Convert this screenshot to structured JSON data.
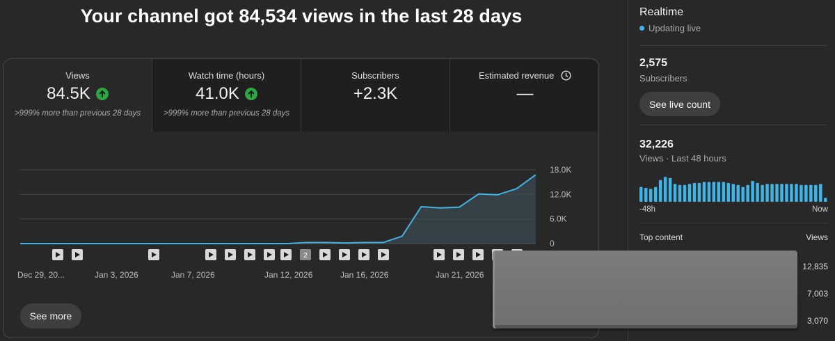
{
  "headline": "Your channel got 84,534 views in the last 28 days",
  "metrics": [
    {
      "label": "Views",
      "value": "84.5K",
      "sub": ">999% more than previous 28 days"
    },
    {
      "label": "Watch time (hours)",
      "value": "41.0K",
      "sub": ">999% more than previous 28 days"
    },
    {
      "label": "Subscribers",
      "value": "+2.3K",
      "sub": ""
    },
    {
      "label": "Estimated revenue",
      "value": "—",
      "sub": ""
    }
  ],
  "chart_data": {
    "type": "area",
    "title": "",
    "xlabel": "",
    "ylabel": "",
    "ylim": [
      0,
      18000
    ],
    "y_ticks": [
      "18.0K",
      "12.0K",
      "6.0K",
      "0"
    ],
    "x_tick_labels": [
      "Dec 29, 20...",
      "Jan 3, 2026",
      "Jan 7, 2026",
      "Jan 12, 2026",
      "Jan 16, 2026",
      "Jan 21, 2026"
    ],
    "x": [
      "Dec 29",
      "Dec 30",
      "Dec 31",
      "Jan 1",
      "Jan 2",
      "Jan 3",
      "Jan 4",
      "Jan 5",
      "Jan 6",
      "Jan 7",
      "Jan 8",
      "Jan 9",
      "Jan 10",
      "Jan 11",
      "Jan 12",
      "Jan 13",
      "Jan 14",
      "Jan 15",
      "Jan 16",
      "Jan 17",
      "Jan 18",
      "Jan 19",
      "Jan 20",
      "Jan 21",
      "Jan 22",
      "Jan 23",
      "Jan 24",
      "Jan 25"
    ],
    "series": [
      {
        "values": [
          0,
          0,
          0,
          0,
          0,
          0,
          0,
          0,
          0,
          0,
          0,
          0,
          0,
          0,
          0,
          250,
          250,
          150,
          250,
          250,
          1800,
          9000,
          8700,
          8900,
          12100,
          11900,
          13400,
          16800
        ]
      }
    ],
    "grid": true,
    "video_markers": [
      "▶",
      "▶",
      "▶",
      "▶",
      "▶",
      "▶",
      "▶",
      "▶",
      "2",
      "▶",
      "▶",
      "▶",
      "▶",
      "▶",
      "▶",
      "▶",
      "▶",
      "▶"
    ]
  },
  "see_more_label": "See more",
  "sidebar": {
    "title": "Realtime",
    "live_text": "Updating live",
    "subscribers_value": "2,575",
    "subscribers_label": "Subscribers",
    "live_count_button": "See live count",
    "views_value": "32,226",
    "views_label": "Views · Last 48 hours",
    "mini_axis_left": "-48h",
    "mini_axis_right": "Now",
    "mini_bars": [
      15,
      14,
      13,
      15,
      22,
      25,
      24,
      18,
      17,
      17,
      18,
      19,
      19,
      20,
      20,
      20,
      20,
      20,
      19,
      18,
      17,
      15,
      17,
      21,
      19,
      17,
      18,
      18,
      18,
      18,
      18,
      18,
      18,
      17,
      17,
      17,
      17,
      18,
      4
    ],
    "top_content_label": "Top content",
    "top_content_col": "Views",
    "top_content_values": [
      "12,835",
      "7,003",
      "3,070"
    ],
    "accent_color": "#41b4e6"
  }
}
